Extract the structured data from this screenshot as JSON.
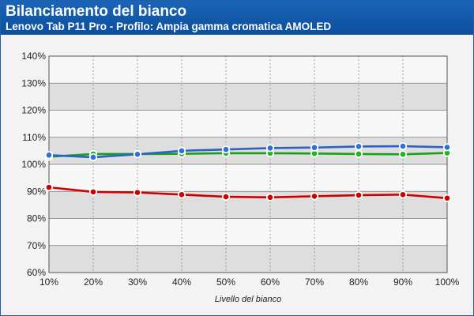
{
  "header": {
    "title": "Bilanciamento del bianco",
    "subtitle": "Lenovo Tab P11 Pro - Profilo: Ampia gamma cromatica AMOLED"
  },
  "chart_data": {
    "type": "line",
    "title": "Bilanciamento del bianco",
    "subtitle": "Lenovo Tab P11 Pro - Profilo: Ampia gamma cromatica AMOLED",
    "xlabel": "Livello del bianco",
    "ylabel": "",
    "categories": [
      "10%",
      "20%",
      "30%",
      "40%",
      "50%",
      "60%",
      "70%",
      "80%",
      "90%",
      "100%"
    ],
    "yticks": [
      "60%",
      "70%",
      "80%",
      "90%",
      "100%",
      "110%",
      "120%",
      "130%",
      "140%"
    ],
    "ylim": [
      60,
      140
    ],
    "ytick_values": [
      60,
      70,
      80,
      90,
      100,
      110,
      120,
      130,
      140
    ],
    "grid": true,
    "series": [
      {
        "color": "#cc0000",
        "fill": "#cc0000",
        "values": [
          91.5,
          89.8,
          89.6,
          88.8,
          88.0,
          87.8,
          88.2,
          88.6,
          88.8,
          87.5
        ]
      },
      {
        "color": "#19a019",
        "fill": "#1fb51f",
        "values": [
          102.8,
          103.8,
          103.8,
          103.9,
          104.1,
          104.1,
          104.0,
          103.8,
          103.7,
          104.2
        ]
      },
      {
        "color": "#2a62c8",
        "fill": "#2f6fd6",
        "values": [
          103.4,
          102.6,
          103.7,
          105.0,
          105.5,
          106.0,
          106.2,
          106.6,
          106.7,
          106.3
        ]
      }
    ]
  }
}
